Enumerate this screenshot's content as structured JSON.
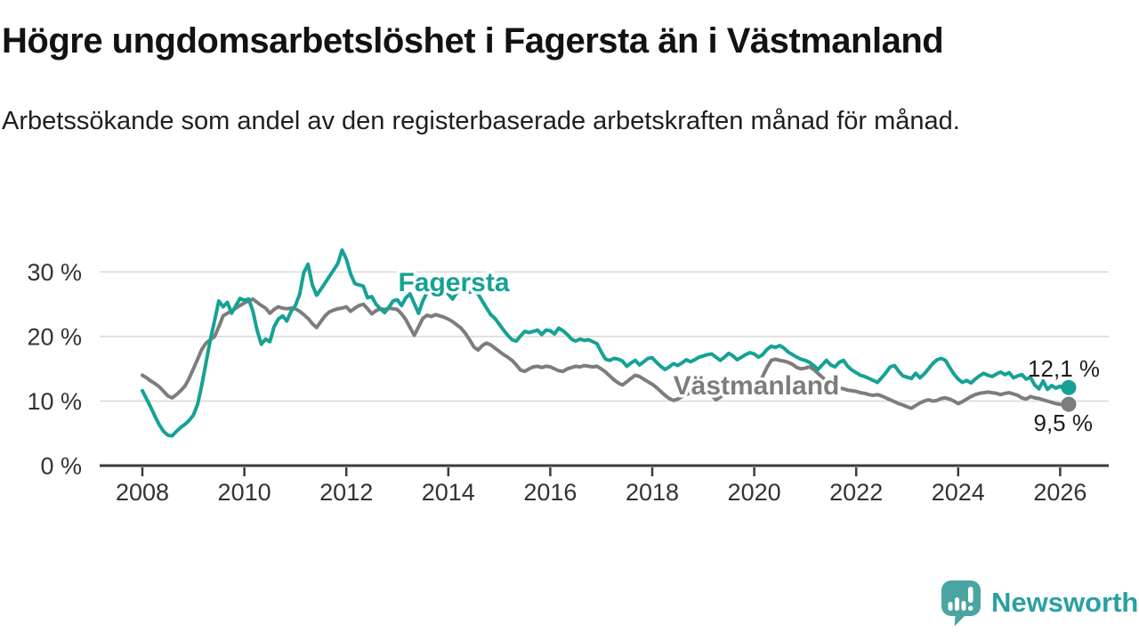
{
  "header": {
    "title": "Högre ungdomsarbetslöshet i Fagersta än i Västmanland",
    "subtitle": "Arbetssökande som andel av den registerbaserade arbetskraften månad för månad."
  },
  "footer": {
    "brand": "Newsworthy",
    "logo_icon": "newsworthy-speech-bubble-bar-chart-icon"
  },
  "colors": {
    "fagersta": "#15a294",
    "vastmanland": "#7d7d7d",
    "axis": "#3b3b3b",
    "grid": "#d9d9d9",
    "text": "#1f1f1f",
    "brand_teal": "#2aa0a0",
    "logo_fill": "#4aa5a2"
  },
  "chart_data": {
    "type": "line",
    "title": "Högre ungdomsarbetslöshet i Fagersta än i Västmanland",
    "subtitle": "Arbetssökande som andel av den registerbaserade arbetskraften månad för månad.",
    "x_unit": "month",
    "x_start_year": 2008,
    "x_end": "2026-03",
    "ylim": [
      0,
      35
    ],
    "grid": "horizontal",
    "x_ticks": [
      2008,
      2010,
      2012,
      2014,
      2016,
      2018,
      2020,
      2022,
      2024,
      2026
    ],
    "y_ticks": [
      {
        "value": 0,
        "label": "0 %"
      },
      {
        "value": 10,
        "label": "10 %"
      },
      {
        "value": 20,
        "label": "20 %"
      },
      {
        "value": 30,
        "label": "30 %"
      }
    ],
    "series": [
      {
        "name": "Fagersta",
        "slug": "fagersta",
        "color": "#15a294",
        "end_label": "12,1 %",
        "end_value": 12.1,
        "values": [
          11.6,
          10.3,
          9.0,
          7.6,
          6.3,
          5.3,
          4.7,
          4.6,
          5.3,
          5.9,
          6.4,
          7.0,
          7.8,
          9.5,
          12.5,
          16.0,
          19.5,
          22.5,
          25.5,
          24.6,
          25.3,
          23.6,
          24.8,
          25.9,
          25.6,
          25.8,
          24.0,
          21.0,
          18.8,
          19.6,
          19.2,
          21.5,
          22.7,
          23.2,
          22.4,
          23.9,
          24.8,
          26.5,
          29.9,
          31.2,
          28.0,
          26.4,
          27.3,
          28.3,
          29.3,
          30.3,
          31.3,
          33.4,
          32.0,
          29.7,
          28.2,
          28.0,
          27.8,
          26.0,
          26.2,
          25.0,
          24.3,
          23.7,
          24.5,
          25.5,
          25.7,
          24.8,
          26.0,
          26.6,
          25.1,
          23.6,
          25.5,
          26.8,
          27.0,
          26.5,
          26.8,
          27.2,
          26.6,
          25.8,
          26.8,
          27.2,
          27.0,
          26.9,
          27.0,
          26.6,
          25.5,
          24.4,
          23.4,
          22.8,
          21.9,
          21.0,
          20.2,
          19.5,
          19.3,
          20.1,
          20.8,
          20.6,
          20.8,
          21.0,
          20.3,
          21.0,
          20.9,
          20.4,
          21.3,
          20.9,
          20.3,
          19.6,
          19.3,
          19.6,
          19.4,
          19.5,
          19.2,
          18.9,
          17.6,
          16.5,
          16.3,
          16.6,
          16.5,
          16.2,
          15.4,
          15.9,
          16.3,
          15.6,
          16.1,
          16.6,
          16.7,
          16.0,
          15.4,
          14.9,
          15.3,
          15.8,
          15.5,
          15.9,
          16.4,
          16.1,
          16.4,
          16.8,
          17.0,
          17.2,
          17.3,
          16.8,
          16.3,
          16.8,
          17.4,
          17.0,
          16.4,
          16.8,
          17.2,
          17.5,
          17.3,
          16.8,
          17.2,
          18.0,
          18.5,
          18.3,
          18.6,
          18.2,
          17.6,
          17.2,
          16.8,
          16.5,
          16.3,
          16.0,
          15.5,
          14.9,
          15.6,
          16.3,
          15.6,
          15.3,
          16.0,
          16.3,
          15.4,
          14.8,
          14.4,
          14.0,
          13.8,
          13.5,
          13.2,
          12.9,
          13.6,
          14.4,
          15.3,
          15.5,
          14.6,
          13.9,
          13.7,
          13.5,
          14.3,
          13.6,
          14.2,
          15.0,
          15.8,
          16.4,
          16.6,
          16.3,
          15.2,
          14.2,
          13.4,
          12.9,
          13.2,
          12.8,
          13.4,
          13.9,
          14.3,
          14.0,
          13.8,
          14.2,
          14.5,
          14.1,
          14.4,
          13.6,
          13.9,
          14.1,
          13.4,
          13.7,
          12.5,
          11.9,
          13.1,
          11.8,
          12.4,
          12.0,
          12.3,
          11.8,
          12.1
        ]
      },
      {
        "name": "Västmanland",
        "slug": "vastmanland",
        "color": "#7d7d7d",
        "end_label": "9,5 %",
        "end_value": 9.5,
        "values": [
          14.0,
          13.6,
          13.1,
          12.7,
          12.2,
          11.5,
          10.8,
          10.5,
          11.0,
          11.6,
          12.3,
          13.5,
          15.0,
          16.5,
          18.0,
          19.0,
          19.5,
          20.0,
          21.5,
          23.2,
          23.6,
          24.0,
          24.4,
          24.8,
          25.2,
          25.5,
          25.8,
          25.3,
          24.8,
          24.4,
          23.6,
          24.2,
          24.6,
          24.4,
          24.3,
          24.4,
          24.3,
          23.9,
          23.4,
          22.8,
          22.0,
          21.4,
          22.3,
          23.2,
          23.8,
          24.1,
          24.3,
          24.4,
          24.6,
          23.9,
          24.4,
          24.8,
          25.0,
          24.3,
          23.5,
          24.0,
          24.3,
          24.2,
          24.4,
          24.3,
          24.2,
          23.5,
          22.6,
          21.4,
          20.2,
          21.5,
          22.8,
          23.3,
          23.1,
          23.4,
          23.2,
          23.0,
          22.7,
          22.3,
          21.8,
          21.3,
          20.5,
          19.5,
          18.4,
          17.9,
          18.6,
          19.0,
          18.7,
          18.2,
          17.7,
          17.2,
          16.8,
          16.3,
          15.6,
          14.8,
          14.6,
          15.0,
          15.3,
          15.4,
          15.2,
          15.4,
          15.3,
          15.0,
          14.7,
          14.6,
          15.0,
          15.2,
          15.4,
          15.3,
          15.5,
          15.4,
          15.3,
          15.4,
          15.0,
          14.5,
          13.9,
          13.3,
          12.8,
          12.5,
          13.0,
          13.5,
          14.0,
          13.8,
          13.4,
          13.0,
          12.6,
          12.1,
          11.5,
          10.9,
          10.4,
          10.1,
          10.3,
          10.7,
          11.0,
          11.3,
          11.5,
          11.7,
          11.7,
          11.4,
          10.9,
          10.2,
          10.6,
          11.2,
          11.6,
          11.8,
          11.7,
          11.9,
          12.1,
          12.3,
          12.5,
          12.8,
          13.8,
          15.2,
          16.3,
          16.5,
          16.3,
          16.2,
          16.0,
          15.7,
          15.2,
          15.0,
          15.1,
          15.3,
          14.9,
          14.3,
          13.7,
          13.1,
          12.6,
          12.2,
          12.0,
          11.9,
          11.7,
          11.6,
          11.5,
          11.3,
          11.2,
          11.0,
          10.9,
          11.0,
          10.8,
          10.5,
          10.2,
          9.9,
          9.6,
          9.4,
          9.1,
          8.9,
          9.3,
          9.7,
          10.0,
          10.2,
          10.0,
          10.1,
          10.4,
          10.5,
          10.3,
          10.0,
          9.6,
          9.9,
          10.3,
          10.7,
          11.0,
          11.2,
          11.3,
          11.4,
          11.3,
          11.2,
          11.0,
          11.2,
          11.3,
          11.1,
          10.9,
          10.5,
          10.3,
          10.7,
          10.5,
          10.4,
          10.2,
          10.0,
          9.8,
          9.6,
          9.5,
          9.4,
          9.5
        ]
      }
    ]
  }
}
